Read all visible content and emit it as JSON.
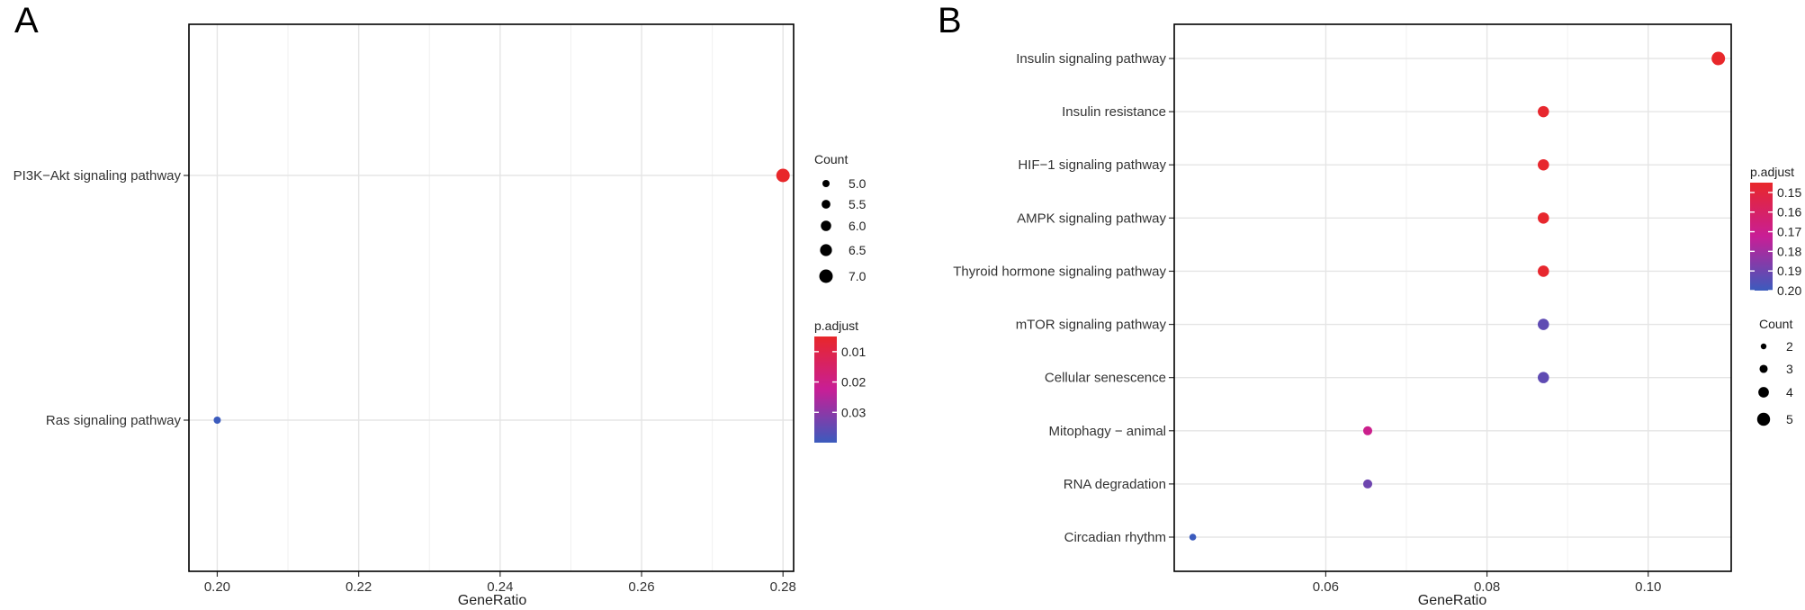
{
  "chart_data": [
    {
      "panel_label": "A",
      "type": "scatter",
      "subtype": "dotplot",
      "xlabel": "GeneRatio",
      "xlim": [
        0.196,
        0.2815
      ],
      "x_ticks": [
        0.2,
        0.22,
        0.24,
        0.26,
        0.28
      ],
      "x_tick_labels": [
        "0.20",
        "0.22",
        "0.24",
        "0.26",
        "0.28"
      ],
      "categories": [
        "PI3K−Akt signaling pathway",
        "Ras signaling pathway"
      ],
      "points": [
        {
          "term": "PI3K−Akt signaling pathway",
          "gene_ratio": 0.28,
          "count": 7,
          "p_adjust": 0.005
        },
        {
          "term": "Ras signaling pathway",
          "gene_ratio": 0.2,
          "count": 5,
          "p_adjust": 0.04
        }
      ],
      "size_legend": {
        "title": "Count",
        "values": [
          5.0,
          5.5,
          6.0,
          6.5,
          7.0
        ],
        "labels": [
          "5.0",
          "5.5",
          "6.0",
          "6.5",
          "7.0"
        ],
        "min": 5,
        "max": 7
      },
      "color_legend": {
        "title": "p.adjust",
        "ticks": [
          0.01,
          0.02,
          0.03
        ],
        "labels": [
          "0.01",
          "0.02",
          "0.03"
        ],
        "min": 0.005,
        "max": 0.04,
        "low_color": "#e8272a",
        "high_color": "#3b5bbd"
      }
    },
    {
      "panel_label": "B",
      "type": "scatter",
      "subtype": "dotplot",
      "xlabel": "GeneRatio",
      "xlim": [
        0.0412,
        0.1103
      ],
      "x_ticks": [
        0.06,
        0.08,
        0.1
      ],
      "x_tick_labels": [
        "0.06",
        "0.08",
        "0.10"
      ],
      "categories": [
        "Insulin signaling pathway",
        "Insulin resistance",
        "HIF−1 signaling pathway",
        "AMPK signaling pathway",
        "Thyroid hormone signaling pathway",
        "mTOR signaling pathway",
        "Cellular senescence",
        "Mitophagy − animal",
        "RNA degradation",
        "Circadian rhythm"
      ],
      "points": [
        {
          "term": "Insulin signaling pathway",
          "gene_ratio": 0.1087,
          "count": 5,
          "p_adjust": 0.145
        },
        {
          "term": "Insulin resistance",
          "gene_ratio": 0.087,
          "count": 4,
          "p_adjust": 0.146
        },
        {
          "term": "HIF−1 signaling pathway",
          "gene_ratio": 0.087,
          "count": 4,
          "p_adjust": 0.146
        },
        {
          "term": "AMPK signaling pathway",
          "gene_ratio": 0.087,
          "count": 4,
          "p_adjust": 0.146
        },
        {
          "term": "Thyroid hormone signaling pathway",
          "gene_ratio": 0.087,
          "count": 4,
          "p_adjust": 0.146
        },
        {
          "term": "mTOR signaling pathway",
          "gene_ratio": 0.087,
          "count": 4,
          "p_adjust": 0.193
        },
        {
          "term": "Cellular senescence",
          "gene_ratio": 0.087,
          "count": 4,
          "p_adjust": 0.193
        },
        {
          "term": "Mitophagy − animal",
          "gene_ratio": 0.0652,
          "count": 3,
          "p_adjust": 0.17
        },
        {
          "term": "RNA degradation",
          "gene_ratio": 0.0652,
          "count": 3,
          "p_adjust": 0.19
        },
        {
          "term": "Circadian rhythm",
          "gene_ratio": 0.0435,
          "count": 2,
          "p_adjust": 0.2
        }
      ],
      "size_legend": {
        "title": "Count",
        "values": [
          2,
          3,
          4,
          5
        ],
        "labels": [
          "2",
          "3",
          "4",
          "5"
        ],
        "min": 2,
        "max": 5
      },
      "color_legend": {
        "title": "p.adjust",
        "ticks": [
          0.15,
          0.16,
          0.17,
          0.18,
          0.19,
          0.2
        ],
        "labels": [
          "0.15",
          "0.16",
          "0.17",
          "0.18",
          "0.19",
          "0.20"
        ],
        "min": 0.145,
        "max": 0.2,
        "low_color": "#e8272a",
        "high_color": "#3b5bbd"
      }
    }
  ]
}
